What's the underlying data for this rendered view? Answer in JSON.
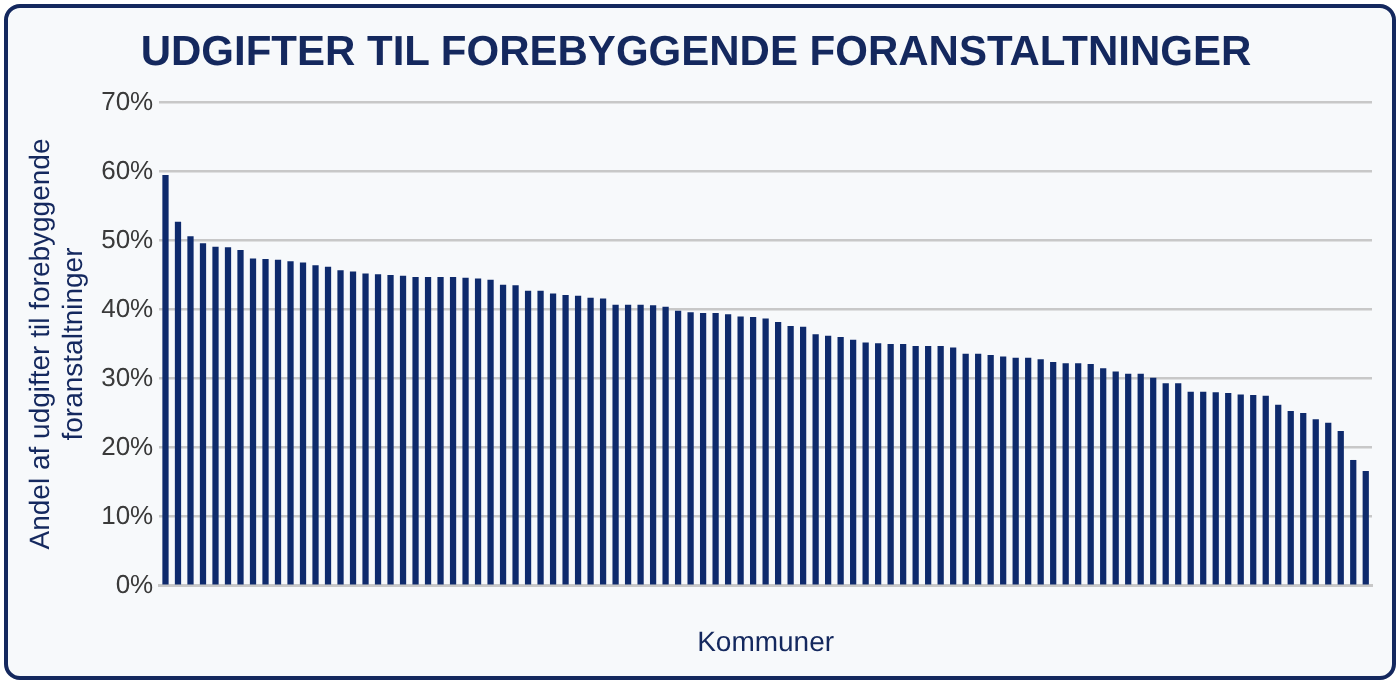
{
  "chart_data": {
    "type": "bar",
    "title": "UDGIFTER TIL FOREBYGGENDE FORANSTALTNINGER",
    "xlabel": "Kommuner",
    "ylabel": "Andel af udgifter til forebyggende foranstaltninger",
    "categories": [
      null,
      null,
      null,
      null,
      null,
      null,
      null,
      null,
      null,
      null,
      null,
      null,
      null,
      null,
      null,
      null,
      null,
      null,
      null,
      null,
      null,
      null,
      null,
      null,
      null,
      null,
      null,
      null,
      null,
      null,
      null,
      null,
      null,
      null,
      null,
      null,
      null,
      null,
      null,
      null,
      null,
      null,
      null,
      null,
      null,
      null,
      null,
      null,
      null,
      null,
      null,
      null,
      null,
      null,
      null,
      null,
      null,
      null,
      null,
      null,
      null,
      null,
      null,
      null,
      null,
      null,
      null,
      null,
      null,
      null,
      null,
      null,
      null,
      null,
      null,
      null,
      null,
      null,
      null,
      null,
      null,
      null,
      null,
      null,
      null,
      null,
      null,
      null,
      null,
      null,
      null,
      null,
      null,
      null,
      null,
      null,
      null
    ],
    "values": [
      59.5,
      52.7,
      50.6,
      49.6,
      49.1,
      49.0,
      48.6,
      47.4,
      47.3,
      47.2,
      47.0,
      46.8,
      46.4,
      46.2,
      45.7,
      45.5,
      45.2,
      45.1,
      45.0,
      44.9,
      44.7,
      44.7,
      44.7,
      44.7,
      44.6,
      44.5,
      44.3,
      43.6,
      43.5,
      42.7,
      42.7,
      42.3,
      42.1,
      42.0,
      41.7,
      41.6,
      40.7,
      40.7,
      40.7,
      40.6,
      40.4,
      39.8,
      39.6,
      39.5,
      39.5,
      39.3,
      39.0,
      38.9,
      38.7,
      38.2,
      37.6,
      37.5,
      36.4,
      36.2,
      36.0,
      35.6,
      35.2,
      35.1,
      35.0,
      35.0,
      34.7,
      34.7,
      34.7,
      34.5,
      33.6,
      33.6,
      33.4,
      33.2,
      33.0,
      33.0,
      32.8,
      32.4,
      32.2,
      32.2,
      32.1,
      31.5,
      31.0,
      30.7,
      30.7,
      30.1,
      29.3,
      29.3,
      28.1,
      28.1,
      28.0,
      27.9,
      27.7,
      27.6,
      27.5,
      26.2,
      25.3,
      25.0,
      24.1,
      23.6,
      22.4,
      18.2,
      16.6
    ],
    "color": "#0e2a6c",
    "ylim": [
      0,
      70
    ],
    "yticks": [
      {
        "value": 0,
        "label": "0%"
      },
      {
        "value": 10,
        "label": "10%"
      },
      {
        "value": 20,
        "label": "20%"
      },
      {
        "value": 30,
        "label": "30%"
      },
      {
        "value": 40,
        "label": "40%"
      },
      {
        "value": 50,
        "label": "50%"
      },
      {
        "value": 60,
        "label": "60%"
      },
      {
        "value": 70,
        "label": "70%"
      }
    ],
    "grid": "y",
    "legend": false
  }
}
